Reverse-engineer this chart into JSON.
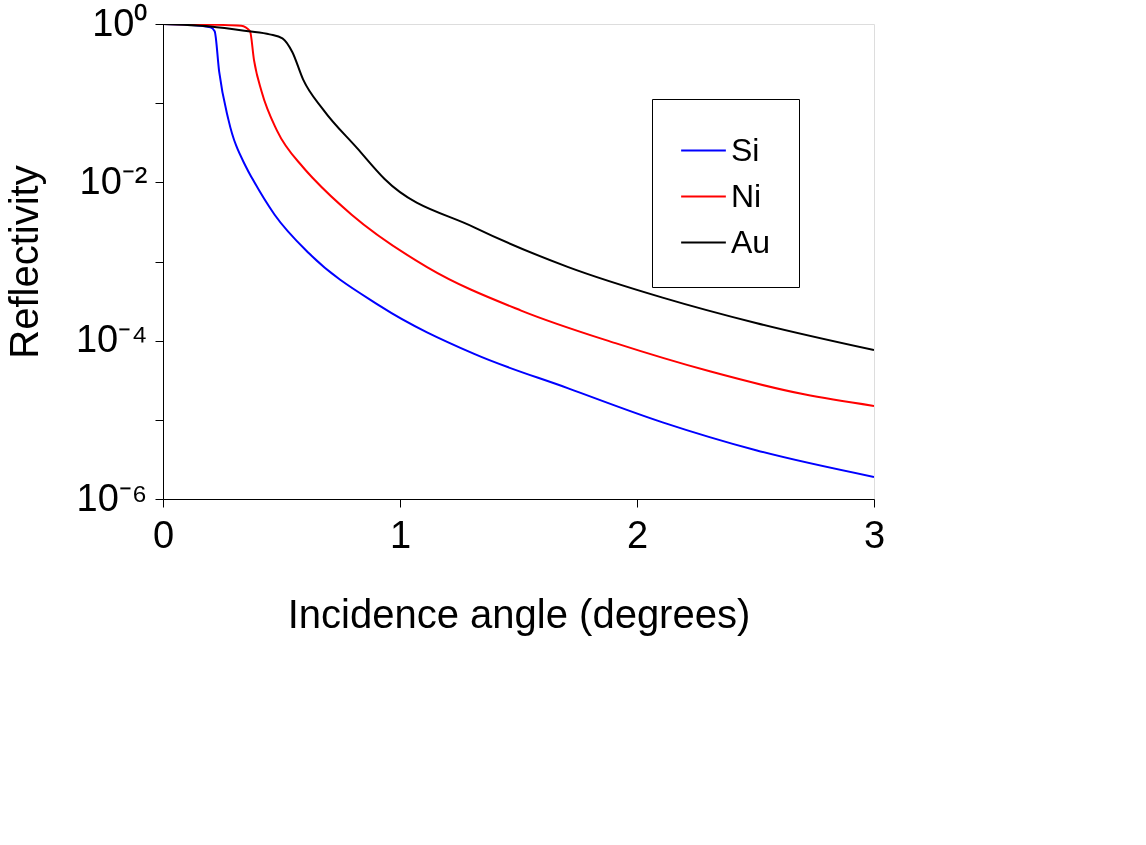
{
  "chart_data": {
    "type": "line",
    "xlabel": "Incidence angle (degrees)",
    "ylabel": "Reflectivity",
    "log": "y",
    "grid": false,
    "legend": "top right",
    "line_style": "solid",
    "marker": "none",
    "xlim": [
      0,
      3
    ],
    "xticks": [
      0,
      1,
      2,
      3
    ],
    "ylim": [
      1e-06,
      1
    ],
    "yticks": [
      {
        "value": 1,
        "label": "10⁰"
      },
      {
        "value": 0.1,
        "label": null
      },
      {
        "value": 0.01,
        "label": "10⁻²"
      },
      {
        "value": 0.001,
        "label": null
      },
      {
        "value": 0.0001,
        "label": "10⁻⁴"
      },
      {
        "value": 1e-05,
        "label": null
      },
      {
        "value": 1e-06,
        "label": "10⁻⁶"
      }
    ],
    "series": [
      {
        "name": "Si",
        "color": "#0000ff",
        "x": [
          0,
          0.1,
          0.2,
          0.218,
          0.237,
          0.276,
          0.351,
          0.378,
          0.471,
          0.617,
          0.915,
          1.313,
          1.71,
          2.108,
          2.506,
          3
        ],
        "values": [
          1,
          0.98,
          0.91,
          0.81,
          0.25,
          0.062,
          0.0155,
          0.011,
          0.0039,
          0.00126,
          0.000275,
          6.8e-05,
          2.5e-05,
          9.3e-06,
          4.1e-06,
          1.9e-06
        ]
      },
      {
        "name": "Ni",
        "color": "#ff0000",
        "x": [
          0,
          0.2,
          0.33,
          0.367,
          0.384,
          0.416,
          0.481,
          0.591,
          0.636,
          0.796,
          1.114,
          1.511,
          1.909,
          2.307,
          2.705,
          3
        ],
        "values": [
          1,
          0.98,
          0.95,
          0.81,
          0.35,
          0.14,
          0.045,
          0.0155,
          0.011,
          0.0039,
          0.00085,
          0.00024,
          9.3e-05,
          4.1e-05,
          2.1e-05,
          1.5e-05
        ]
      },
      {
        "name": "Au",
        "color": "#000000",
        "x": [
          0,
          0.2,
          0.36,
          0.45,
          0.504,
          0.546,
          0.591,
          0.676,
          0.819,
          0.935,
          1.313,
          1.71,
          2.108,
          2.506,
          3
        ],
        "values": [
          1,
          0.93,
          0.81,
          0.74,
          0.66,
          0.44,
          0.2,
          0.083,
          0.027,
          0.011,
          0.0027,
          0.00085,
          0.00035,
          0.000166,
          7.6e-05
        ]
      }
    ]
  }
}
